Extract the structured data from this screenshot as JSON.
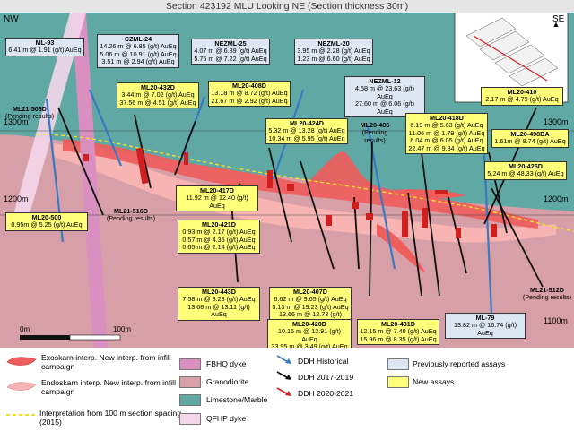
{
  "title": "Section 423192 MLU Looking NE (Section thickness 30m)",
  "directions": {
    "left": "NW",
    "right": "SE"
  },
  "elevations": [
    "1300m",
    "1300m",
    "1200m",
    "1200m",
    "1100m"
  ],
  "scale": {
    "start": "0m",
    "end": "100m"
  },
  "colors": {
    "exoskarn": "#ef5d5d",
    "endoskarn": "#f8b3b3",
    "granodiorite": "#d7a0a8",
    "limestone": "#5fa8a4",
    "fbhq": "#d98fbf",
    "qfhp": "#f4d6ea",
    "blue_box": "#dde7f3",
    "yellow_box": "#ffff7a",
    "historical": "#3a78c2",
    "ddh_2017": "#111111",
    "ddh_2020": "#d11f1f"
  },
  "blue_boxes": {
    "ml93": {
      "name": "ML-93",
      "lines": [
        "6.41 m @ 1.91 (g/t) AuEq"
      ]
    },
    "czml24": {
      "name": "CZML-24",
      "lines": [
        "14.26 m @ 6.85 (g/t) AuEq",
        "5.06 m @ 10.91 (g/t) AuEq",
        "3.51 m @ 2.94 (g/t) AuEq"
      ]
    },
    "nezml25": {
      "name": "NEZML-25",
      "lines": [
        "4.07 m @ 6.89 (g/t) AuEq",
        "5.75 m @ 7.22 (g/t) AuEq"
      ]
    },
    "nezml20": {
      "name": "NEZML-20",
      "lines": [
        "3.95 m @ 2.28 (g/t) AuEq",
        "1.23 m @ 6.60 (g/t) AuEq"
      ]
    },
    "nezml12": {
      "name": "NEZML-12",
      "lines": [
        "4.58 m @ 23.63 (g/t) AuEq",
        "27.60 m @ 6.06 (g/t) AuEq"
      ]
    },
    "ml79": {
      "name": "ML-79",
      "lines": [
        "13.82 m @ 16.74 (g/t) AuEq"
      ]
    }
  },
  "yellow_boxes": {
    "ml20432d": {
      "name": "ML20-432D",
      "lines": [
        "3.44 m @ 7.02 (g/t) AuEq",
        "37.56 m @ 4.51 (g/t) AuEq"
      ]
    },
    "ml20408d": {
      "name": "ML20-408D",
      "lines": [
        "13.18 m @ 8.72 (g/t) AuEq",
        "21.67 m @ 2.92 (g/t) AuEq"
      ]
    },
    "ml20410": {
      "name": "ML20-410",
      "lines": [
        "2.17 m @ 4.79 (g/t) AuEq"
      ]
    },
    "ml20424d": {
      "name": "ML20-424D",
      "lines": [
        "5.32 m @ 13.28 (g/t) AuEq",
        "10.34 m @ 5.95 (g/t) AuEq"
      ]
    },
    "ml20418d": {
      "name": "ML20-418D",
      "lines": [
        "6.19 m @ 5.63 (g/t) AuEq",
        "11.06 m @ 1.79 (g/t) AuEq",
        "6.04 m @ 6.05 (g/t) AuEq",
        "22.47 m @ 9.84 (g/t) AuEq"
      ]
    },
    "ml20498da": {
      "name": "ML20-498DA",
      "lines": [
        "1.61m @ 8.74 (g/t) AuEq"
      ]
    },
    "ml20426d": {
      "name": "ML20-426D",
      "lines": [
        "5.24 m @ 48.33 (g/t) AuEq"
      ]
    },
    "ml20417d": {
      "name": "ML20-417D",
      "lines": [
        "11.92 m @ 12.40 (g/t) AuEq"
      ]
    },
    "ml20500": {
      "name": "ML20-500",
      "lines": [
        "0.95m @ 5.25 (g/t) AuEq"
      ]
    },
    "ml20421d": {
      "name": "ML20-421D",
      "lines": [
        "0.93 m @ 2.17 (g/t) AuEq",
        "0.57 m @ 4.35 (g/t) AuEq",
        "0.65 m @ 2.14 (g/t) AuEq"
      ]
    },
    "ml20443d": {
      "name": "ML20-443D",
      "lines": [
        "7.58 m @ 8.28 (g/t) AuEq",
        "13.68 m @ 13.11 (g/t) AuEq"
      ]
    },
    "ml20407d": {
      "name": "ML20-407D",
      "lines": [
        "6.62 m @ 9.65 (g/t) AuEq",
        "3.13 m @ 19.23 (g/t) AuEq",
        "13.66 m @ 12.73 (g/t) AuEq"
      ]
    },
    "ml20420d": {
      "name": "ML20-420D",
      "lines": [
        "10.16 m @ 12.91 (g/t) AuEq",
        "33.95 m @ 3.49 (g/t) AuEq"
      ]
    },
    "ml20431d": {
      "name": "ML20-431D",
      "lines": [
        "12.15 m @ 7.40 (g/t) AuEq",
        "15.96 m @ 8.35 (g/t) AuEq"
      ]
    }
  },
  "pending_labels": {
    "ml21506d": {
      "name": "ML21-506D",
      "note": "(Pending results)"
    },
    "ml21516d": {
      "name": "ML21-516D",
      "note": "(Pending results)"
    },
    "ml20406": {
      "name": "ML20-406",
      "note": "(Pending results)"
    },
    "ml21512d": {
      "name": "ML21-512D",
      "note": "(Pending results)"
    }
  },
  "legend": {
    "exoskarn": "Exoskarn interp. New interp. from infill campaign",
    "endoskarn": "Endoskarn interp. New interp. from infill campaign",
    "interp100": "Interpretation from 100 m section spacing (2015)",
    "fbhq": "FBHQ dyke",
    "granodiorite": "Granodiorite",
    "limestone": "Limestone/Marble",
    "qfhp": "QFHP dyke",
    "historical": "DDH  Historical",
    "ddh2017": "DDH 2017-2019",
    "ddh2020": "DDH 2020-2021",
    "prev_assays": "Previously reported assays",
    "new_assays": "New assays"
  }
}
